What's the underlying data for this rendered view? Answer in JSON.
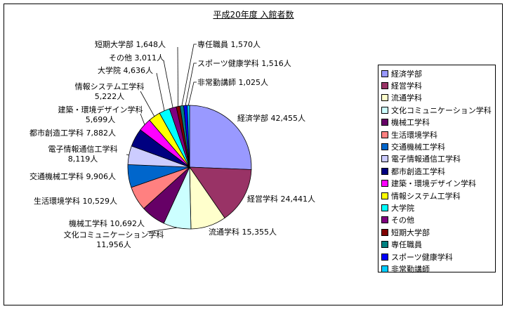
{
  "chart_data": {
    "type": "pie",
    "title": "平成20年度 入館者数",
    "unit": "人",
    "slices": [
      {
        "name": "経済学部",
        "value": 42455,
        "label": "経済学部 42,455人",
        "color": "#9999ff"
      },
      {
        "name": "経営学科",
        "value": 24441,
        "label": "経営学科 24,441人",
        "color": "#993366"
      },
      {
        "name": "流通学科",
        "value": 15355,
        "label": "流通学科 15,355人",
        "color": "#ffffcc"
      },
      {
        "name": "文化コミュニケーション学科",
        "value": 11956,
        "label": "文化コミュニケーション学科|11,956人",
        "color": "#ccffff"
      },
      {
        "name": "機械工学科",
        "value": 10692,
        "label": "機械工学科 10,692人",
        "color": "#660066"
      },
      {
        "name": "生活環境学科",
        "value": 10529,
        "label": "生活環境学科 10,529人",
        "color": "#ff8080"
      },
      {
        "name": "交通機械工学科",
        "value": 9906,
        "label": "交通機械工学科 9,906人",
        "color": "#0066cc"
      },
      {
        "name": "電子情報通信工学科",
        "value": 8119,
        "label": "電子情報通信工学科|8,119人",
        "color": "#ccccff"
      },
      {
        "name": "都市創造工学科",
        "value": 7882,
        "label": "都市創造工学科 7,882人",
        "color": "#000080"
      },
      {
        "name": "建築・環境デザイン学科",
        "value": 5699,
        "label": "建築・環境デザイン学科|5,699人",
        "color": "#ff00ff"
      },
      {
        "name": "情報システム工学科",
        "value": 5222,
        "label": "情報システム工学科|5,222人",
        "color": "#ffff00"
      },
      {
        "name": "大学院",
        "value": 4636,
        "label": "大学院 4,636人",
        "color": "#00ffff"
      },
      {
        "name": "その他",
        "value": 3011,
        "label": "その他 3,011人",
        "color": "#800080"
      },
      {
        "name": "短期大学部",
        "value": 1648,
        "label": "短期大学部 1,648人",
        "color": "#800000"
      },
      {
        "name": "専任職員",
        "value": 1570,
        "label": "専任職員 1,570人",
        "color": "#008080"
      },
      {
        "name": "スポーツ健康学科",
        "value": 1516,
        "label": "スポーツ健康学科 1,516人",
        "color": "#0000ff"
      },
      {
        "name": "非常勤講師",
        "value": 1025,
        "label": "非常勤講師 1,025人",
        "color": "#00ccff"
      }
    ],
    "legend_position": "right"
  }
}
